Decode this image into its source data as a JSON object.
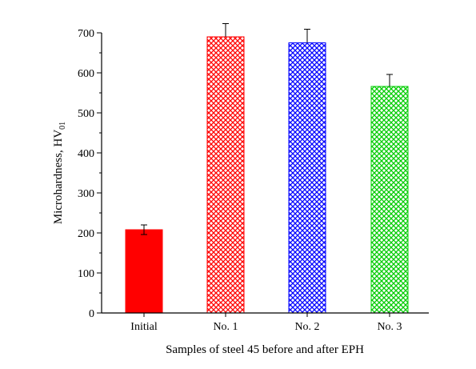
{
  "chart_data": {
    "type": "bar",
    "title": "",
    "xlabel": "Samples of steel 45 before and after EPH",
    "ylabel_main": "Microhardness, HV",
    "ylabel_sub": "01",
    "categories": [
      "Initial",
      "No. 1",
      "No. 2",
      "No. 3"
    ],
    "values": [
      208,
      690,
      675,
      566
    ],
    "errors": [
      12,
      33,
      34,
      30
    ],
    "ylim": [
      0,
      700
    ],
    "yticks": [
      0,
      100,
      200,
      300,
      400,
      500,
      600,
      700
    ],
    "grid": false,
    "bar_styles": [
      {
        "fill": "#ff0000",
        "pattern": "solid"
      },
      {
        "fill": "#ff0000",
        "pattern": "crosshatch"
      },
      {
        "fill": "#0000ff",
        "pattern": "crosshatch"
      },
      {
        "fill": "#00cc00",
        "pattern": "crosshatch"
      }
    ]
  }
}
